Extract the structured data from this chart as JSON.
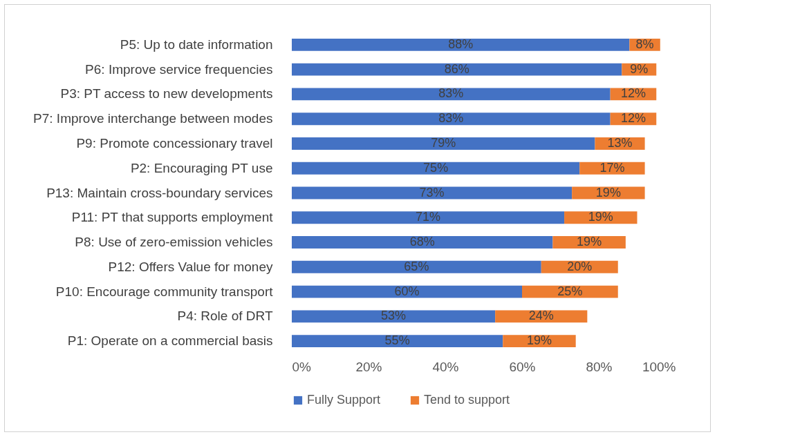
{
  "chart_data": {
    "type": "bar",
    "orientation": "horizontal",
    "stacked": true,
    "legend": "bottom",
    "categories": [
      "P5: Up to date information",
      "P6: Improve service frequencies",
      "P3: PT access to new developments",
      "P7: Improve interchange between modes",
      "P9: Promote concessionary travel",
      "P2: Encouraging PT use",
      "P13: Maintain cross-boundary services",
      "P11: PT that supports employment ",
      "P8: Use of zero-emission vehicles",
      "P12: Offers Value for money",
      "P10: Encourage community transport",
      "P4: Role of DRT",
      "P1: Operate on a commercial basis"
    ],
    "series": [
      {
        "name": "Fully Support",
        "color": "#4472c4",
        "values": [
          88,
          86,
          83,
          83,
          79,
          75,
          73,
          71,
          68,
          65,
          60,
          53,
          55
        ],
        "value_labels": [
          "88%",
          "86%",
          "83%",
          "83%",
          "79%",
          "75%",
          "73%",
          "71%",
          "68%",
          "65%",
          "60%",
          "53%",
          "55%"
        ]
      },
      {
        "name": "Tend to support",
        "color": "#ed7d31",
        "values": [
          8,
          9,
          12,
          12,
          13,
          17,
          19,
          19,
          19,
          20,
          25,
          24,
          19
        ],
        "value_labels": [
          "8%",
          "9%",
          "12%",
          "12%",
          "13%",
          "17%",
          "19%",
          "19%",
          "19%",
          "20%",
          "25%",
          "24%",
          "19%"
        ]
      }
    ],
    "xlim": [
      0,
      100
    ],
    "xticks": [
      {
        "value": 0,
        "label": "0%"
      },
      {
        "value": 20,
        "label": "20%"
      },
      {
        "value": 40,
        "label": "40%"
      },
      {
        "value": 60,
        "label": "60%"
      },
      {
        "value": 80,
        "label": "80%"
      },
      {
        "value": 100,
        "label": "100%"
      }
    ],
    "grid": false
  }
}
